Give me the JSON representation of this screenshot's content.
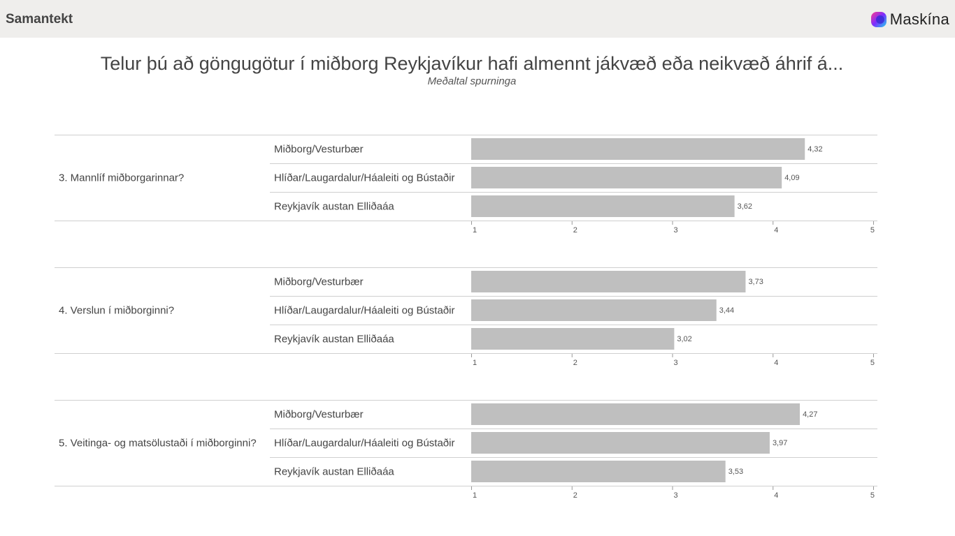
{
  "header": {
    "title": "Samantekt",
    "logo_text": "Maskína"
  },
  "colors": {
    "bar": "#bfbfbf",
    "header_bg": "#efeeec",
    "rule": "#cfcfcf"
  },
  "chart_data": {
    "type": "bar",
    "orientation": "horizontal",
    "title": "Telur þú að göngugötur í miðborg Reykjavíkur hafi almennt jákvæð eða neikvæð áhrif á...",
    "subtitle": "Meðaltal spurninga",
    "xlim": [
      1,
      5
    ],
    "ticks": [
      "1",
      "2",
      "3",
      "4",
      "5"
    ],
    "groups": [
      {
        "question": "3. Mannlíf miðborgarinnar?",
        "categories": [
          "Miðborg/Vesturbær",
          "Hlíðar/Laugardalur/Háaleiti og Bústaðir",
          "Reykjavík austan Elliðaáa"
        ],
        "values": [
          4.32,
          4.09,
          3.62
        ],
        "labels": [
          "4,32",
          "4,09",
          "3,62"
        ]
      },
      {
        "question": "4. Verslun í miðborginni?",
        "categories": [
          "Miðborg/Vesturbær",
          "Hlíðar/Laugardalur/Háaleiti og Bústaðir",
          "Reykjavík austan Elliðaáa"
        ],
        "values": [
          3.73,
          3.44,
          3.02
        ],
        "labels": [
          "3,73",
          "3,44",
          "3,02"
        ]
      },
      {
        "question": "5. Veitinga- og matsölustaði í miðborginni?",
        "categories": [
          "Miðborg/Vesturbær",
          "Hlíðar/Laugardalur/Háaleiti og Bústaðir",
          "Reykjavík austan Elliðaáa"
        ],
        "values": [
          4.27,
          3.97,
          3.53
        ],
        "labels": [
          "4,27",
          "3,97",
          "3,53"
        ]
      }
    ]
  }
}
